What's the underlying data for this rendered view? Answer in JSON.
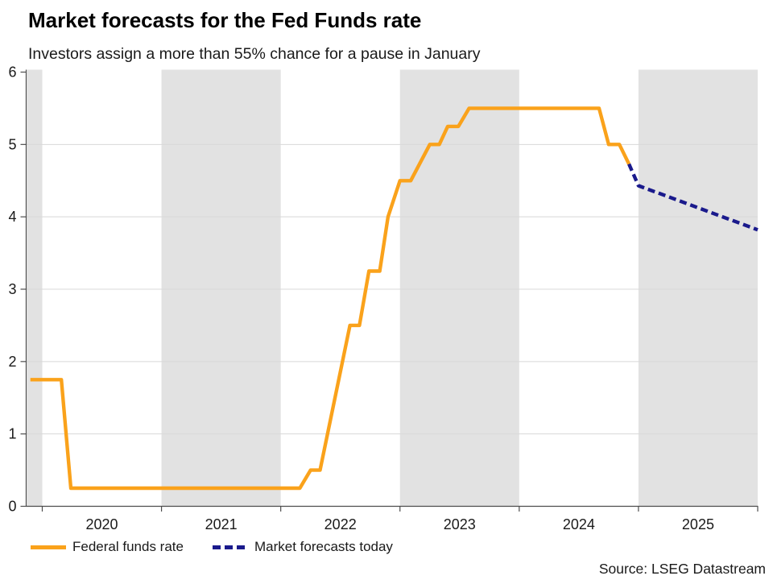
{
  "header": {
    "title": "Market forecasts for the Fed Funds rate",
    "subtitle": "Investors assign a more than 55% chance for a pause in January"
  },
  "source": "Source: LSEG Datastream",
  "colors": {
    "fed_line": "#faa21b",
    "forecast_line": "#1a1a8c",
    "band": "#e2e2e2",
    "gridline": "#d8d8d8",
    "axis": "#4d4d4d",
    "tick_text": "#1a1a1a"
  },
  "legend": {
    "items": [
      {
        "label": "Federal funds rate",
        "style": "solid",
        "color": "#faa21b"
      },
      {
        "label": "Market forecasts today",
        "style": "dashed",
        "color": "#1a1a8c"
      }
    ]
  },
  "chart_data": {
    "type": "line",
    "title": "Market forecasts for the Fed Funds rate",
    "subtitle": "Investors assign a more than 55% chance for a pause in January",
    "xlabel": "",
    "ylabel": "",
    "x_range": [
      2019.865,
      2026.0
    ],
    "ylim": [
      0,
      6
    ],
    "y_ticks": [
      0,
      1,
      2,
      3,
      4,
      5,
      6
    ],
    "x_year_boundaries": [
      2020,
      2021,
      2022,
      2023,
      2024,
      2025,
      2026
    ],
    "x_tick_labels": [
      "2020",
      "2021",
      "2022",
      "2023",
      "2024",
      "2025"
    ],
    "gridlines": [
      1,
      2,
      3,
      4,
      5
    ],
    "shaded_bands": [
      [
        2019.872,
        2020.0
      ],
      [
        2021.0,
        2022.0
      ],
      [
        2023.0,
        2024.0
      ],
      [
        2025.0,
        2026.0
      ]
    ],
    "legend_position": "bottom-left",
    "series": [
      {
        "name": "Federal funds rate",
        "style": "solid",
        "color": "#faa21b",
        "points": [
          [
            2019.9,
            1.75
          ],
          [
            2020.16,
            1.75
          ],
          [
            2020.24,
            0.25
          ],
          [
            2022.16,
            0.25
          ],
          [
            2022.25,
            0.5
          ],
          [
            2022.33,
            0.5
          ],
          [
            2022.58,
            2.5
          ],
          [
            2022.66,
            2.5
          ],
          [
            2022.74,
            3.25
          ],
          [
            2022.83,
            3.25
          ],
          [
            2022.9,
            4.0
          ],
          [
            2023.0,
            4.5
          ],
          [
            2023.09,
            4.5
          ],
          [
            2023.25,
            5.0
          ],
          [
            2023.33,
            5.0
          ],
          [
            2023.4,
            5.25
          ],
          [
            2023.49,
            5.25
          ],
          [
            2023.58,
            5.5
          ],
          [
            2024.67,
            5.5
          ],
          [
            2024.75,
            5.0
          ],
          [
            2024.84,
            5.0
          ],
          [
            2024.92,
            4.73
          ]
        ]
      },
      {
        "name": "Market forecasts today",
        "style": "dashed",
        "color": "#1a1a8c",
        "points": [
          [
            2024.92,
            4.73
          ],
          [
            2025.0,
            4.43
          ],
          [
            2026.0,
            3.82
          ]
        ]
      }
    ]
  }
}
